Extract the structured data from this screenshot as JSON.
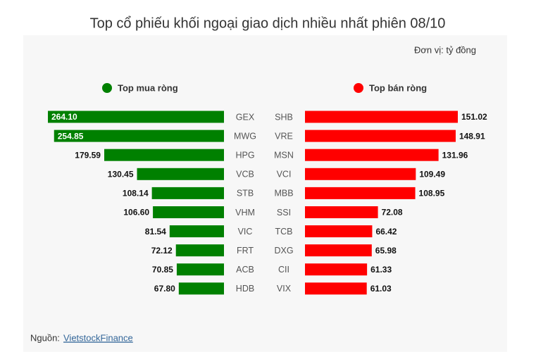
{
  "title": "Top cổ phiếu khối ngoại giao dịch nhiều nhất phiên 08/10",
  "unit": "Đơn vị: tỷ đồng",
  "source_label": "Nguồn:",
  "source_link": "VietstockFinance",
  "chart_data": [
    {
      "type": "bar",
      "title": "Top mua ròng",
      "color": "#008000",
      "direction": "left",
      "categories": [
        "GEX",
        "MWG",
        "HPG",
        "VCB",
        "STB",
        "VHM",
        "VIC",
        "FRT",
        "ACB",
        "HDB"
      ],
      "values": [
        264.1,
        254.85,
        179.59,
        130.45,
        108.14,
        106.6,
        81.54,
        72.12,
        70.85,
        67.8
      ],
      "value_labels": [
        "264.10",
        "254.85",
        "179.59",
        "130.45",
        "108.14",
        "106.60",
        "81.54",
        "72.12",
        "70.85",
        "67.80"
      ],
      "xlim": [
        0,
        264.1
      ]
    },
    {
      "type": "bar",
      "title": "Top bán ròng",
      "color": "#ff0000",
      "direction": "right",
      "categories": [
        "SHB",
        "VRE",
        "MSN",
        "VCI",
        "MBB",
        "SSI",
        "TCB",
        "DXG",
        "CII",
        "VIX"
      ],
      "values": [
        151.02,
        148.91,
        131.96,
        109.49,
        108.95,
        72.08,
        66.42,
        65.98,
        61.33,
        61.03
      ],
      "value_labels": [
        "151.02",
        "148.91",
        "131.96",
        "109.49",
        "108.95",
        "72.08",
        "66.42",
        "65.98",
        "61.33",
        "61.03"
      ],
      "xlim": [
        0,
        151.02
      ]
    }
  ]
}
